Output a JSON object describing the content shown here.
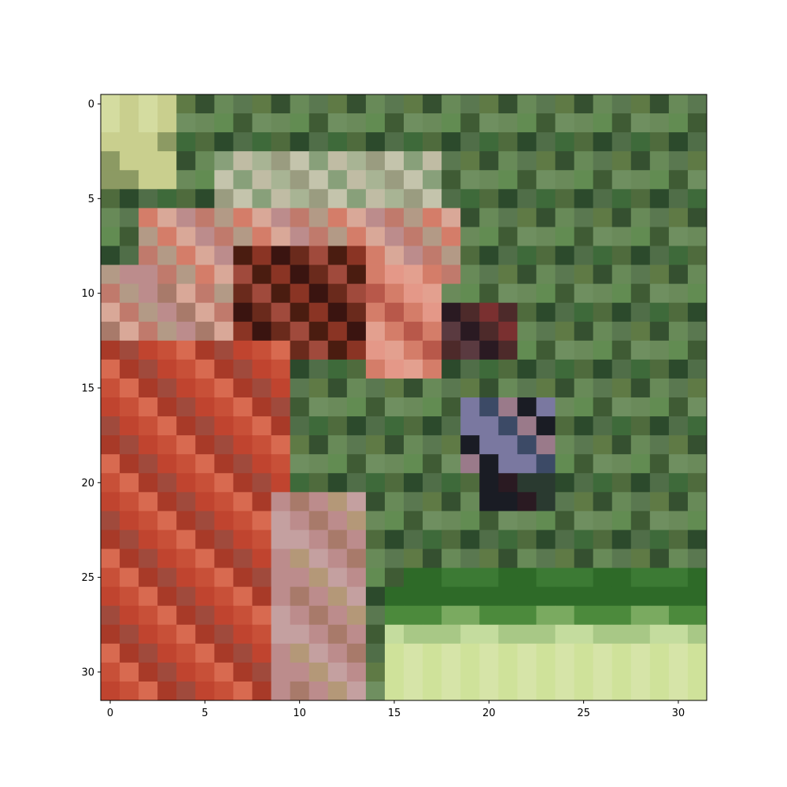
{
  "chart_data": {
    "type": "heatmap",
    "title": "",
    "xlabel": "",
    "ylabel": "",
    "image_size": [
      32,
      32
    ],
    "xlim": [
      -0.5,
      31.5
    ],
    "ylim": [
      31.5,
      -0.5
    ],
    "xticks": [
      0,
      5,
      10,
      15,
      20,
      25,
      30
    ],
    "yticks": [
      0,
      5,
      10,
      15,
      20,
      25,
      30
    ],
    "xtick_labels": [
      "0",
      "5",
      "10",
      "15",
      "20",
      "25",
      "30"
    ],
    "ytick_labels": [
      "0",
      "5",
      "10",
      "15",
      "20",
      "25",
      "30"
    ],
    "palette": [
      "#a6b98a",
      "#d4dca0",
      "#c9cf8e",
      "#8c9a63",
      "#5f7a45",
      "#4f6b3d",
      "#3f5b34",
      "#355030",
      "#2c4a2c",
      "#6f8f60",
      "#88a07a",
      "#a8b494",
      "#c4c4ac",
      "#c0bca4",
      "#9a9c80",
      "#b39a86",
      "#d9a898",
      "#c07a6c",
      "#a04a3c",
      "#8a3424",
      "#6a2a1c",
      "#4a1c10",
      "#3a1410",
      "#b8584a",
      "#d47d69",
      "#e3a08f",
      "#4d2a2a",
      "#2a1a22",
      "#7a3030",
      "#5a3a40",
      "#9a7a8a",
      "#7a78a0",
      "#3c4a66",
      "#1a1c24",
      "#2a3a30",
      "#c85038",
      "#a83a28",
      "#c0442f",
      "#d86a50",
      "#e49888",
      "#bc8c8c",
      "#c4a0a0",
      "#a87a6a",
      "#b49878",
      "#688a58",
      "#3c7a34",
      "#2e6a28",
      "#4c8a3c",
      "#7aaa60",
      "#a8c886",
      "#c4dc9e",
      "#d6e4a8",
      "#cfe29a",
      "#b7d48a",
      "#94ae7c",
      "#506e48",
      "#6a8a5a",
      "#7e9474",
      "#5a7850",
      "#3e6a3a",
      "#628c52",
      "#9cb07e",
      "#b8c8a0",
      "#8aaa7a"
    ]
  }
}
